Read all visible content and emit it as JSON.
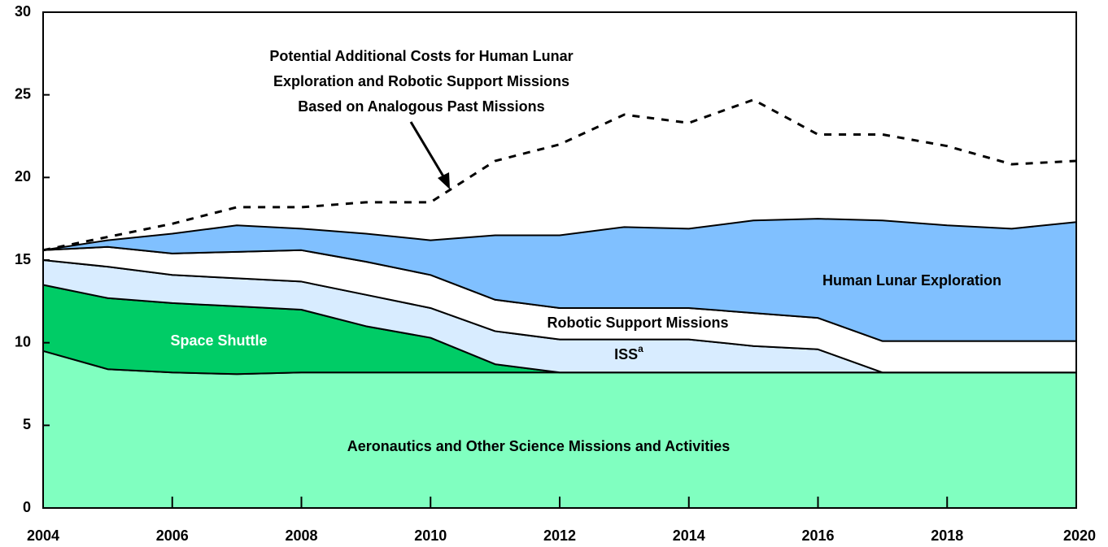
{
  "chart_data": {
    "type": "stacked_area",
    "x": [
      2004,
      2005,
      2006,
      2007,
      2008,
      2009,
      2010,
      2011,
      2012,
      2013,
      2014,
      2015,
      2016,
      2017,
      2018,
      2019,
      2020
    ],
    "xlim": [
      2004,
      2020
    ],
    "xticks": [
      2004,
      2006,
      2008,
      2010,
      2012,
      2014,
      2016,
      2018,
      2020
    ],
    "ylim": [
      0,
      30
    ],
    "yticks": [
      0,
      5,
      10,
      15,
      20,
      25,
      30
    ],
    "series": [
      {
        "name": "Aeronautics and Other Science Missions and Activities",
        "color": "#80ffc0",
        "values": [
          9.5,
          8.4,
          8.2,
          8.1,
          8.2,
          8.2,
          8.2,
          8.2,
          8.2,
          8.2,
          8.2,
          8.2,
          8.2,
          8.2,
          8.2,
          8.2,
          8.2
        ]
      },
      {
        "name": "Space Shuttle",
        "color": "#00cc66",
        "values": [
          4.0,
          4.3,
          4.2,
          4.1,
          3.8,
          2.8,
          2.1,
          0.5,
          0,
          0,
          0,
          0,
          0,
          0,
          0,
          0,
          0
        ]
      },
      {
        "name": "ISS",
        "footnote": "a",
        "color": "#d8ecff",
        "values": [
          1.5,
          1.9,
          1.7,
          1.7,
          1.7,
          1.9,
          1.8,
          2.0,
          2.0,
          2.0,
          2.0,
          1.6,
          1.4,
          0,
          0,
          0,
          0
        ]
      },
      {
        "name": "Robotic Support Missions",
        "color": "#ffffff",
        "values": [
          0.6,
          1.2,
          1.3,
          1.6,
          1.9,
          2.0,
          2.0,
          1.9,
          1.9,
          1.9,
          1.9,
          2.0,
          1.9,
          1.9,
          1.9,
          1.9,
          1.9
        ]
      },
      {
        "name": "Human Lunar Exploration",
        "color": "#80c0ff",
        "values": [
          0,
          0.4,
          1.2,
          1.6,
          1.3,
          1.7,
          2.1,
          3.9,
          4.4,
          4.9,
          4.8,
          5.6,
          6.0,
          7.3,
          7.0,
          6.8,
          7.2
        ]
      }
    ],
    "line": {
      "color": "#000000",
      "annotation": [
        "Potential Additional Costs for Human Lunar",
        "Exploration and Robotic Support Missions",
        "Based on Analogous Past Missions"
      ],
      "values": [
        15.6,
        16.4,
        17.2,
        18.2,
        18.2,
        18.5,
        18.5,
        21.0,
        22.0,
        23.8,
        23.3,
        24.7,
        22.6,
        22.6,
        21.9,
        20.8,
        21.0
      ]
    }
  }
}
